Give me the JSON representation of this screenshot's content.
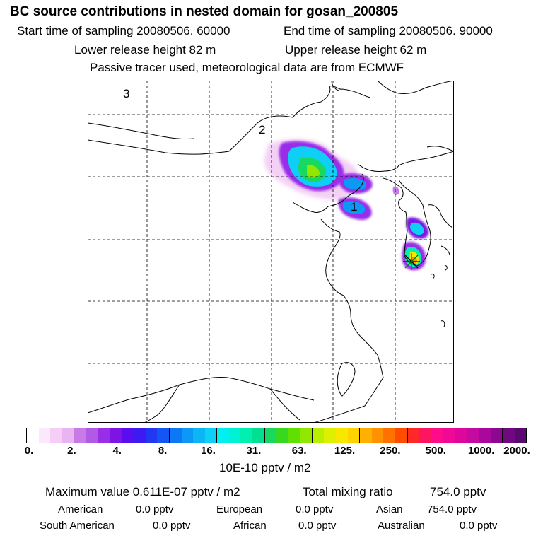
{
  "header": {
    "title": "BC  source contributions in nested domain for gosan_200805",
    "start_label": "Start time of sampling 20080506. 60000",
    "end_label": "End time of sampling 20080506. 90000",
    "lower_release": "Lower release height   82 m",
    "upper_release": "Upper release height   62 m",
    "tracer_note": "Passive tracer used, meteorological data are from ECMWF"
  },
  "map": {
    "region_labels": [
      "1",
      "2",
      "3"
    ],
    "colors": {
      "coast": "#000000",
      "grid": "#000000"
    },
    "marker": "release-site-star-icon"
  },
  "colorbar": {
    "ticks": [
      "0.",
      "2.",
      "4.",
      "8.",
      "16.",
      "31.",
      "63.",
      "125.",
      "250.",
      "500.",
      "1000.",
      "2000."
    ],
    "unit": "10E-10 pptv / m2",
    "colors": [
      "#ffffff",
      "#fbe8fb",
      "#f4cef6",
      "#eab3f2",
      "#c77ae8",
      "#b25ae6",
      "#9a2ee8",
      "#7e13e6",
      "#5a0ef0",
      "#3d1af2",
      "#2038f2",
      "#1456f2",
      "#0d78f5",
      "#0c98f5",
      "#0cb6f5",
      "#0ecff5",
      "#00f0f0",
      "#00f2d4",
      "#00f0b0",
      "#00e090",
      "#18d860",
      "#38d820",
      "#60e000",
      "#90e800",
      "#b8f000",
      "#dcf000",
      "#f8e800",
      "#ffd200",
      "#ffb000",
      "#ff9200",
      "#ff7200",
      "#ff4c00",
      "#ff2828",
      "#ff1460",
      "#ff0c8a",
      "#f00896",
      "#dc089c",
      "#c40aa0",
      "#a8089c",
      "#8c0890",
      "#700880",
      "#580870"
    ]
  },
  "stats": {
    "max_label": "Maximum value  0.611E-07 pptv / m2",
    "total_label": "Total mixing ratio",
    "total_value": "754.0 pptv",
    "regions": [
      {
        "name": "American",
        "value": "0.0 pptv"
      },
      {
        "name": "European",
        "value": "0.0 pptv"
      },
      {
        "name": "Asian",
        "value": "754.0 pptv"
      },
      {
        "name": "South American",
        "value": "0.0 pptv"
      },
      {
        "name": "African",
        "value": "0.0 pptv"
      },
      {
        "name": "Australian",
        "value": "0.0 pptv"
      }
    ]
  }
}
